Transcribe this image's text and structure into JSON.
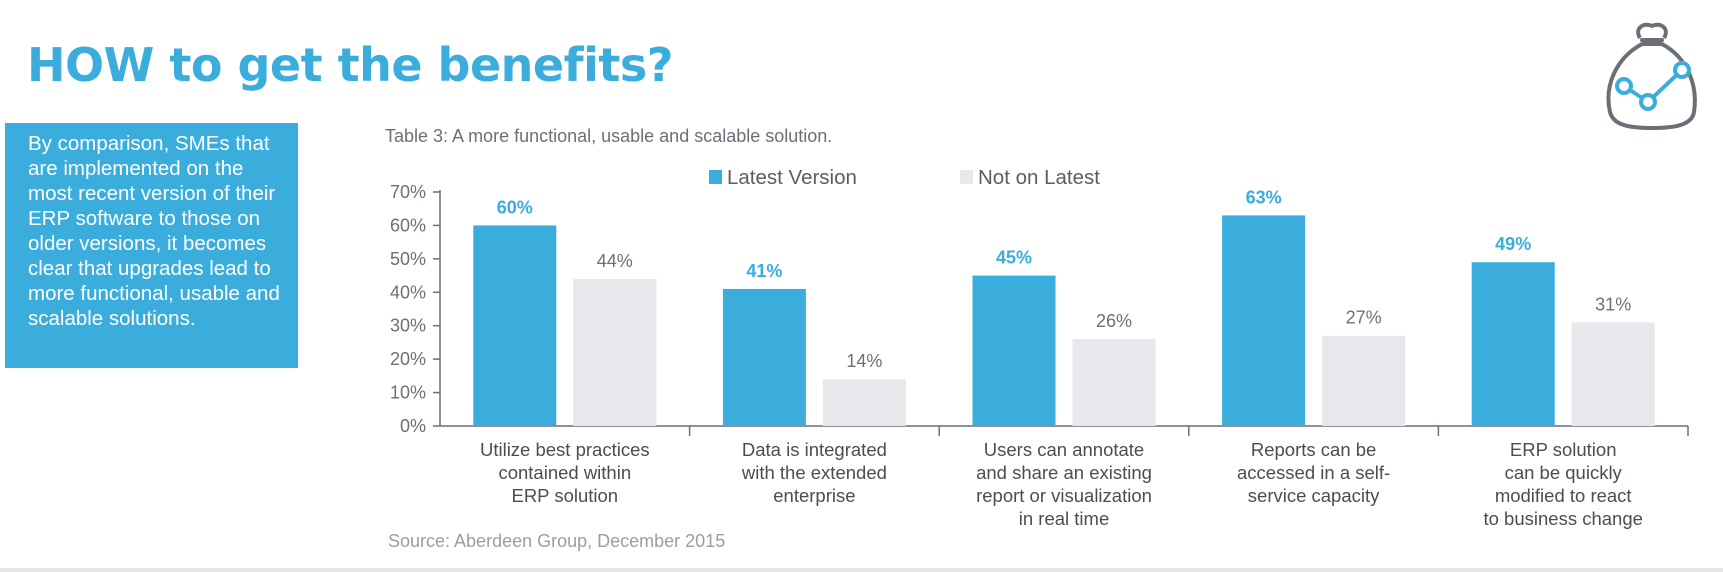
{
  "title": "HOW to get the benefits?",
  "sidebar": {
    "text": "By comparison, SMEs that are implemented on the most recent version of their ERP software to those on older versions, it becomes clear that upgrades lead to more functional, usable and scalable solutions."
  },
  "logo": {
    "icon": "money-bag-growth-icon"
  },
  "colors": {
    "accent": "#3aaddd",
    "latest": "#3aaddd",
    "not_latest": "#e7e8eb",
    "axis": "#6b6f78"
  },
  "chart_data": {
    "type": "bar",
    "title": "Table 3: A more functional, usable and scalable solution.",
    "categories": [
      [
        "Utilize best practices",
        "contained within",
        "ERP solution"
      ],
      [
        "Data is integrated",
        "with the extended",
        "enterprise"
      ],
      [
        "Users can annotate",
        "and share an existing",
        "report or visualization",
        "in real time"
      ],
      [
        "Reports can be",
        "accessed in a self-",
        "service capacity"
      ],
      [
        "ERP solution",
        "can be quickly",
        "modified to react",
        "to business change"
      ]
    ],
    "series": [
      {
        "name": "Latest Version",
        "values": [
          60,
          41,
          45,
          63,
          49
        ],
        "color": "#3aaddd"
      },
      {
        "name": "Not on Latest",
        "values": [
          44,
          14,
          26,
          27,
          31
        ],
        "color": "#e7e8eb"
      }
    ],
    "value_labels": [
      [
        "60%",
        "41%",
        "45%",
        "63%",
        "49%"
      ],
      [
        "44%",
        "14%",
        "26%",
        "27%",
        "31%"
      ]
    ],
    "yticks": [
      "0%",
      "10%",
      "20%",
      "30%",
      "40%",
      "50%",
      "60%",
      "70%"
    ],
    "ylim": [
      0,
      70
    ],
    "legend_position": "top",
    "source": "Source: Aberdeen Group, December 2015"
  }
}
